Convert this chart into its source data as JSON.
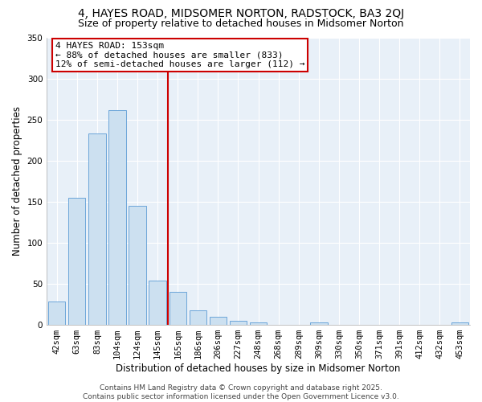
{
  "title": "4, HAYES ROAD, MIDSOMER NORTON, RADSTOCK, BA3 2QJ",
  "subtitle": "Size of property relative to detached houses in Midsomer Norton",
  "xlabel": "Distribution of detached houses by size in Midsomer Norton",
  "ylabel": "Number of detached properties",
  "bar_labels": [
    "42sqm",
    "63sqm",
    "83sqm",
    "104sqm",
    "124sqm",
    "145sqm",
    "165sqm",
    "186sqm",
    "206sqm",
    "227sqm",
    "248sqm",
    "268sqm",
    "289sqm",
    "309sqm",
    "330sqm",
    "350sqm",
    "371sqm",
    "391sqm",
    "412sqm",
    "432sqm",
    "453sqm"
  ],
  "bar_values": [
    28,
    155,
    233,
    261,
    145,
    54,
    40,
    18,
    10,
    5,
    3,
    0,
    0,
    3,
    0,
    0,
    0,
    0,
    0,
    0,
    3
  ],
  "bar_color": "#cce0f0",
  "bar_edge_color": "#5b9bd5",
  "highlight_bar_index": 5,
  "vline_color": "#cc0000",
  "vline_position": 5.5,
  "ylim": [
    0,
    350
  ],
  "yticks": [
    0,
    50,
    100,
    150,
    200,
    250,
    300,
    350
  ],
  "annotation_title": "4 HAYES ROAD: 153sqm",
  "annotation_line1": "← 88% of detached houses are smaller (833)",
  "annotation_line2": "12% of semi-detached houses are larger (112) →",
  "footer_line1": "Contains HM Land Registry data © Crown copyright and database right 2025.",
  "footer_line2": "Contains public sector information licensed under the Open Government Licence v3.0.",
  "background_color": "#ffffff",
  "plot_bg_color": "#e8f0f8",
  "grid_color": "#ffffff",
  "title_fontsize": 10,
  "subtitle_fontsize": 9,
  "axis_label_fontsize": 8.5,
  "tick_fontsize": 7.5,
  "annotation_fontsize": 8,
  "footer_fontsize": 6.5
}
